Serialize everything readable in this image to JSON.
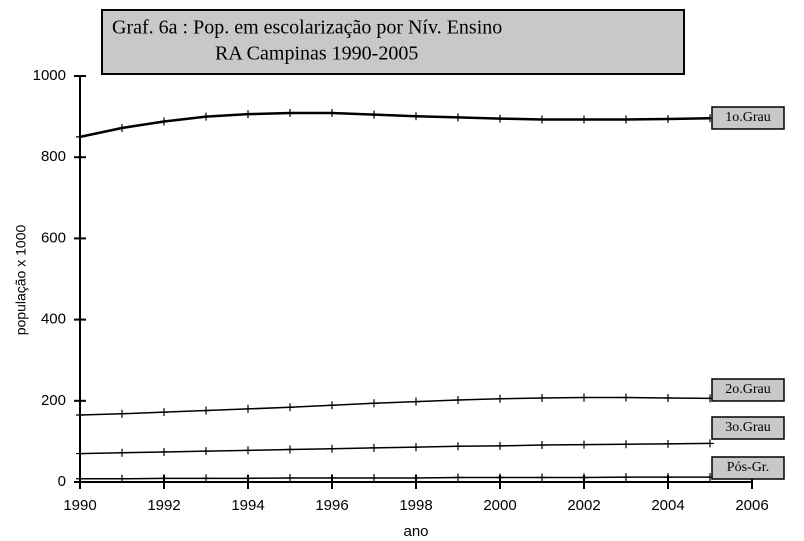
{
  "chart_data": {
    "type": "line",
    "title": [
      "Graf. 6a : Pop. em escolarização por Nív. Ensino",
      "RA Campinas 1990-2005"
    ],
    "x_label": "ano",
    "y_label": "população x 1000",
    "x": [
      1990,
      1991,
      1992,
      1993,
      1994,
      1995,
      1996,
      1997,
      1998,
      1999,
      2000,
      2001,
      2002,
      2003,
      2004,
      2005
    ],
    "series": [
      {
        "name": "1o.Grau",
        "color": "#000000",
        "values": [
          850,
          872,
          888,
          900,
          906,
          909,
          909,
          905,
          901,
          898,
          895,
          893,
          893,
          893,
          894,
          896
        ]
      },
      {
        "name": "2o.Grau",
        "color": "#000000",
        "values": [
          165,
          168,
          172,
          176,
          180,
          184,
          189,
          194,
          198,
          202,
          205,
          207,
          208,
          208,
          207,
          206
        ]
      },
      {
        "name": "3o.Grau",
        "color": "#000000",
        "values": [
          70,
          72,
          74,
          76,
          78,
          80,
          82,
          84,
          86,
          88,
          89,
          91,
          92,
          93,
          94,
          95
        ]
      },
      {
        "name": "Pós-Gr.",
        "color": "#000000",
        "values": [
          8,
          8,
          9,
          9,
          9,
          10,
          10,
          10,
          10,
          11,
          11,
          11,
          11,
          12,
          12,
          12
        ]
      }
    ],
    "xlim": [
      1990,
      2006
    ],
    "xticks": [
      1990,
      1992,
      1994,
      1996,
      1998,
      2000,
      2002,
      2004,
      2006
    ],
    "ylim": [
      0,
      1000
    ],
    "yticks": [
      0,
      200,
      400,
      600,
      800,
      1000
    ],
    "grid": false
  }
}
